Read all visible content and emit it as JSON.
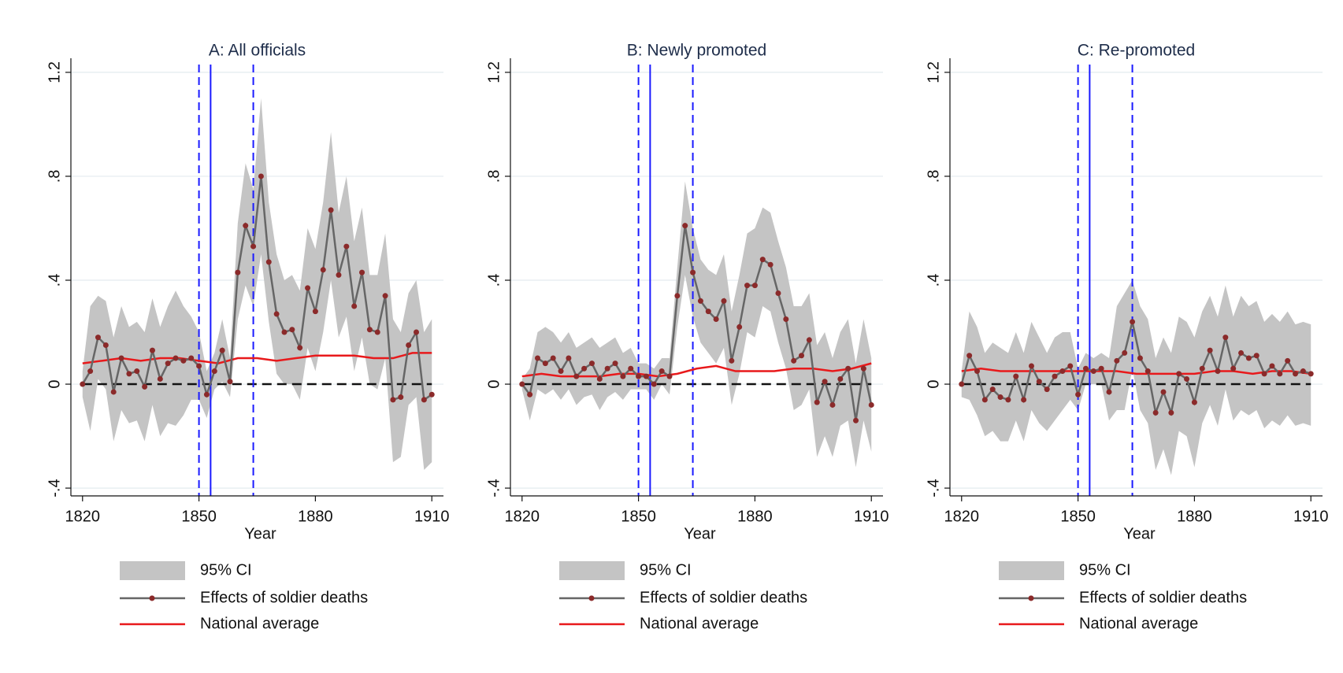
{
  "chart_data": [
    {
      "type": "line",
      "title": "A: All officials",
      "x_label": "Year",
      "x": [
        1820,
        1822,
        1824,
        1826,
        1828,
        1830,
        1832,
        1834,
        1836,
        1838,
        1840,
        1842,
        1844,
        1846,
        1848,
        1850,
        1852,
        1854,
        1856,
        1858,
        1860,
        1862,
        1864,
        1866,
        1868,
        1870,
        1872,
        1874,
        1876,
        1878,
        1880,
        1882,
        1884,
        1886,
        1888,
        1890,
        1892,
        1894,
        1896,
        1898,
        1900,
        1902,
        1904,
        1906,
        1908,
        1910
      ],
      "series": [
        {
          "name": "95% CI",
          "color": "#c4c4c4",
          "lower": [
            -0.05,
            -0.18,
            0.02,
            -0.02,
            -0.22,
            -0.1,
            -0.15,
            -0.14,
            -0.22,
            -0.08,
            -0.2,
            -0.15,
            -0.16,
            -0.12,
            -0.06,
            -0.06,
            -0.13,
            -0.02,
            0.01,
            -0.05,
            0.25,
            0.38,
            0.3,
            0.5,
            0.24,
            0.04,
            0.0,
            0.0,
            -0.06,
            0.14,
            0.05,
            0.2,
            0.4,
            0.18,
            0.26,
            0.05,
            0.18,
            0.0,
            -0.02,
            0.1,
            -0.3,
            -0.28,
            -0.08,
            -0.05,
            -0.33,
            -0.3
          ],
          "upper": [
            0.05,
            0.3,
            0.34,
            0.32,
            0.18,
            0.3,
            0.22,
            0.24,
            0.2,
            0.33,
            0.22,
            0.3,
            0.36,
            0.3,
            0.26,
            0.2,
            0.05,
            0.12,
            0.25,
            0.1,
            0.62,
            0.85,
            0.75,
            1.1,
            0.7,
            0.5,
            0.4,
            0.42,
            0.36,
            0.6,
            0.52,
            0.7,
            0.97,
            0.66,
            0.8,
            0.55,
            0.68,
            0.42,
            0.42,
            0.58,
            0.25,
            0.2,
            0.35,
            0.4,
            0.2,
            0.25
          ]
        },
        {
          "name": "Effects of soldier deaths",
          "color": "#666666",
          "marker_color": "#8b2a2a",
          "values": [
            0,
            0.05,
            0.18,
            0.15,
            -0.03,
            0.1,
            0.04,
            0.05,
            -0.01,
            0.13,
            0.02,
            0.08,
            0.1,
            0.09,
            0.1,
            0.07,
            -0.04,
            0.05,
            0.13,
            0.01,
            0.43,
            0.61,
            0.53,
            0.8,
            0.47,
            0.27,
            0.2,
            0.21,
            0.14,
            0.37,
            0.28,
            0.44,
            0.67,
            0.42,
            0.53,
            0.3,
            0.43,
            0.21,
            0.2,
            0.34,
            -0.06,
            -0.05,
            0.15,
            0.2,
            -0.06,
            -0.04
          ]
        },
        {
          "name": "National average",
          "color": "#e8191b",
          "x": [
            1820,
            1825,
            1830,
            1835,
            1840,
            1845,
            1850,
            1855,
            1860,
            1865,
            1870,
            1875,
            1880,
            1885,
            1890,
            1895,
            1900,
            1905,
            1910
          ],
          "values": [
            0.08,
            0.09,
            0.1,
            0.09,
            0.1,
            0.1,
            0.09,
            0.08,
            0.1,
            0.1,
            0.09,
            0.1,
            0.11,
            0.11,
            0.11,
            0.1,
            0.1,
            0.12,
            0.12
          ]
        }
      ],
      "xlim": [
        1817,
        1913
      ],
      "ylim": [
        -0.43,
        1.23
      ],
      "xticks": [
        1820,
        1850,
        1880,
        1910
      ],
      "yticks": [
        {
          "value": -0.4,
          "label": "-.4"
        },
        0,
        {
          "value": 0.4,
          "label": ".4"
        },
        {
          "value": 0.8,
          "label": ".8"
        },
        1.2
      ],
      "vlines": [
        {
          "value": 1850,
          "style": "dashed"
        },
        {
          "value": 1853,
          "style": "solid"
        },
        {
          "value": 1864,
          "style": "dashed"
        }
      ],
      "vline_color": "#1a1aff",
      "hline": 0,
      "hline_color": "#111111",
      "grid": true
    },
    {
      "type": "line",
      "title": "B: Newly promoted",
      "x_label": "Year",
      "x": [
        1820,
        1822,
        1824,
        1826,
        1828,
        1830,
        1832,
        1834,
        1836,
        1838,
        1840,
        1842,
        1844,
        1846,
        1848,
        1850,
        1852,
        1854,
        1856,
        1858,
        1860,
        1862,
        1864,
        1866,
        1868,
        1870,
        1872,
        1874,
        1876,
        1878,
        1880,
        1882,
        1884,
        1886,
        1888,
        1890,
        1892,
        1894,
        1896,
        1898,
        1900,
        1902,
        1904,
        1906,
        1908,
        1910
      ],
      "series": [
        {
          "name": "95% CI",
          "color": "#c4c4c4",
          "lower": [
            -0.02,
            -0.14,
            -0.02,
            -0.04,
            -0.02,
            -0.06,
            -0.02,
            -0.08,
            -0.05,
            -0.04,
            -0.1,
            -0.05,
            -0.03,
            -0.06,
            -0.02,
            -0.02,
            -0.02,
            -0.06,
            0,
            -0.04,
            0.22,
            0.42,
            0.26,
            0.16,
            0.12,
            0.08,
            0.14,
            -0.08,
            0.04,
            0.2,
            0.18,
            0.3,
            0.28,
            0.16,
            0.06,
            -0.1,
            -0.08,
            -0.02,
            -0.28,
            -0.2,
            -0.28,
            -0.16,
            -0.14,
            -0.32,
            -0.14,
            -0.26
          ],
          "upper": [
            0.02,
            0.06,
            0.2,
            0.22,
            0.2,
            0.16,
            0.2,
            0.14,
            0.16,
            0.18,
            0.14,
            0.16,
            0.18,
            0.12,
            0.14,
            0.08,
            0.08,
            0.06,
            0.1,
            0.1,
            0.45,
            0.78,
            0.6,
            0.48,
            0.44,
            0.42,
            0.5,
            0.28,
            0.42,
            0.58,
            0.6,
            0.68,
            0.66,
            0.55,
            0.45,
            0.3,
            0.3,
            0.35,
            0.15,
            0.2,
            0.1,
            0.2,
            0.25,
            0.08,
            0.25,
            0.1
          ]
        },
        {
          "name": "Effects of soldier deaths",
          "color": "#666666",
          "marker_color": "#8b2a2a",
          "values": [
            0,
            -0.04,
            0.1,
            0.08,
            0.1,
            0.05,
            0.1,
            0.03,
            0.06,
            0.08,
            0.02,
            0.06,
            0.08,
            0.03,
            0.06,
            0.03,
            0.03,
            0,
            0.05,
            0.03,
            0.34,
            0.61,
            0.43,
            0.32,
            0.28,
            0.25,
            0.32,
            0.09,
            0.22,
            0.38,
            0.38,
            0.48,
            0.46,
            0.35,
            0.25,
            0.09,
            0.11,
            0.17,
            -0.07,
            0.01,
            -0.08,
            0.02,
            0.06,
            -0.14,
            0.06,
            -0.08
          ]
        },
        {
          "name": "National average",
          "color": "#e8191b",
          "x": [
            1820,
            1825,
            1830,
            1835,
            1840,
            1845,
            1850,
            1855,
            1860,
            1865,
            1870,
            1875,
            1880,
            1885,
            1890,
            1895,
            1900,
            1905,
            1910
          ],
          "values": [
            0.03,
            0.04,
            0.03,
            0.03,
            0.03,
            0.04,
            0.04,
            0.03,
            0.04,
            0.06,
            0.07,
            0.05,
            0.05,
            0.05,
            0.06,
            0.06,
            0.05,
            0.06,
            0.08
          ]
        }
      ],
      "xlim": [
        1817,
        1913
      ],
      "ylim": [
        -0.43,
        1.23
      ],
      "xticks": [
        1820,
        1850,
        1880,
        1910
      ],
      "yticks": [
        {
          "value": -0.4,
          "label": "-.4"
        },
        0,
        {
          "value": 0.4,
          "label": ".4"
        },
        {
          "value": 0.8,
          "label": ".8"
        },
        1.2
      ],
      "vlines": [
        {
          "value": 1850,
          "style": "dashed"
        },
        {
          "value": 1853,
          "style": "solid"
        },
        {
          "value": 1864,
          "style": "dashed"
        }
      ],
      "vline_color": "#1a1aff",
      "hline": 0,
      "hline_color": "#111111",
      "grid": true
    },
    {
      "type": "line",
      "title": "C: Re-promoted",
      "x_label": "Year",
      "x": [
        1820,
        1822,
        1824,
        1826,
        1828,
        1830,
        1832,
        1834,
        1836,
        1838,
        1840,
        1842,
        1844,
        1846,
        1848,
        1850,
        1852,
        1854,
        1856,
        1858,
        1860,
        1862,
        1864,
        1866,
        1868,
        1870,
        1872,
        1874,
        1876,
        1878,
        1880,
        1882,
        1884,
        1886,
        1888,
        1890,
        1892,
        1894,
        1896,
        1898,
        1900,
        1902,
        1904,
        1906,
        1908,
        1910
      ],
      "series": [
        {
          "name": "95% CI",
          "color": "#c4c4c4",
          "lower": [
            -0.05,
            -0.06,
            -0.12,
            -0.2,
            -0.18,
            -0.22,
            -0.22,
            -0.14,
            -0.22,
            -0.1,
            -0.15,
            -0.18,
            -0.14,
            -0.1,
            -0.06,
            -0.1,
            0,
            0,
            0,
            -0.14,
            -0.1,
            -0.1,
            0.06,
            -0.1,
            -0.15,
            -0.33,
            -0.25,
            -0.35,
            -0.18,
            -0.2,
            -0.32,
            -0.15,
            -0.08,
            -0.16,
            -0.02,
            -0.14,
            -0.1,
            -0.12,
            -0.1,
            -0.17,
            -0.14,
            -0.16,
            -0.12,
            -0.16,
            -0.15,
            -0.16
          ],
          "upper": [
            0.05,
            0.28,
            0.22,
            0.12,
            0.16,
            0.14,
            0.12,
            0.2,
            0.12,
            0.24,
            0.18,
            0.12,
            0.18,
            0.2,
            0.2,
            0.06,
            0.12,
            0.1,
            0.12,
            0.1,
            0.3,
            0.35,
            0.4,
            0.3,
            0.25,
            0.1,
            0.18,
            0.12,
            0.26,
            0.24,
            0.18,
            0.28,
            0.34,
            0.26,
            0.38,
            0.26,
            0.34,
            0.3,
            0.32,
            0.24,
            0.27,
            0.24,
            0.28,
            0.23,
            0.24,
            0.23
          ]
        },
        {
          "name": "Effects of soldier deaths",
          "color": "#666666",
          "marker_color": "#8b2a2a",
          "values": [
            0,
            0.11,
            0.05,
            -0.06,
            -0.02,
            -0.05,
            -0.06,
            0.03,
            -0.06,
            0.07,
            0.01,
            -0.02,
            0.03,
            0.05,
            0.07,
            -0.04,
            0.06,
            0.05,
            0.06,
            -0.03,
            0.09,
            0.12,
            0.24,
            0.1,
            0.05,
            -0.11,
            -0.03,
            -0.11,
            0.04,
            0.02,
            -0.07,
            0.06,
            0.13,
            0.05,
            0.18,
            0.06,
            0.12,
            0.1,
            0.11,
            0.04,
            0.07,
            0.04,
            0.09,
            0.04,
            0.05,
            0.04
          ]
        },
        {
          "name": "National average",
          "color": "#e8191b",
          "x": [
            1820,
            1825,
            1830,
            1835,
            1840,
            1845,
            1850,
            1855,
            1860,
            1865,
            1870,
            1875,
            1880,
            1885,
            1890,
            1895,
            1900,
            1905,
            1910
          ],
          "values": [
            0.05,
            0.06,
            0.05,
            0.05,
            0.05,
            0.05,
            0.05,
            0.05,
            0.05,
            0.04,
            0.04,
            0.04,
            0.04,
            0.05,
            0.05,
            0.04,
            0.05,
            0.05,
            0.04
          ]
        }
      ],
      "xlim": [
        1817,
        1913
      ],
      "ylim": [
        -0.43,
        1.23
      ],
      "xticks": [
        1820,
        1850,
        1880,
        1910
      ],
      "yticks": [
        {
          "value": -0.4,
          "label": "-.4"
        },
        0,
        {
          "value": 0.4,
          "label": ".4"
        },
        {
          "value": 0.8,
          "label": ".8"
        },
        1.2
      ],
      "vlines": [
        {
          "value": 1850,
          "style": "dashed"
        },
        {
          "value": 1853,
          "style": "solid"
        },
        {
          "value": 1864,
          "style": "dashed"
        }
      ],
      "vline_color": "#1a1aff",
      "hline": 0,
      "hline_color": "#111111",
      "grid": true
    }
  ]
}
